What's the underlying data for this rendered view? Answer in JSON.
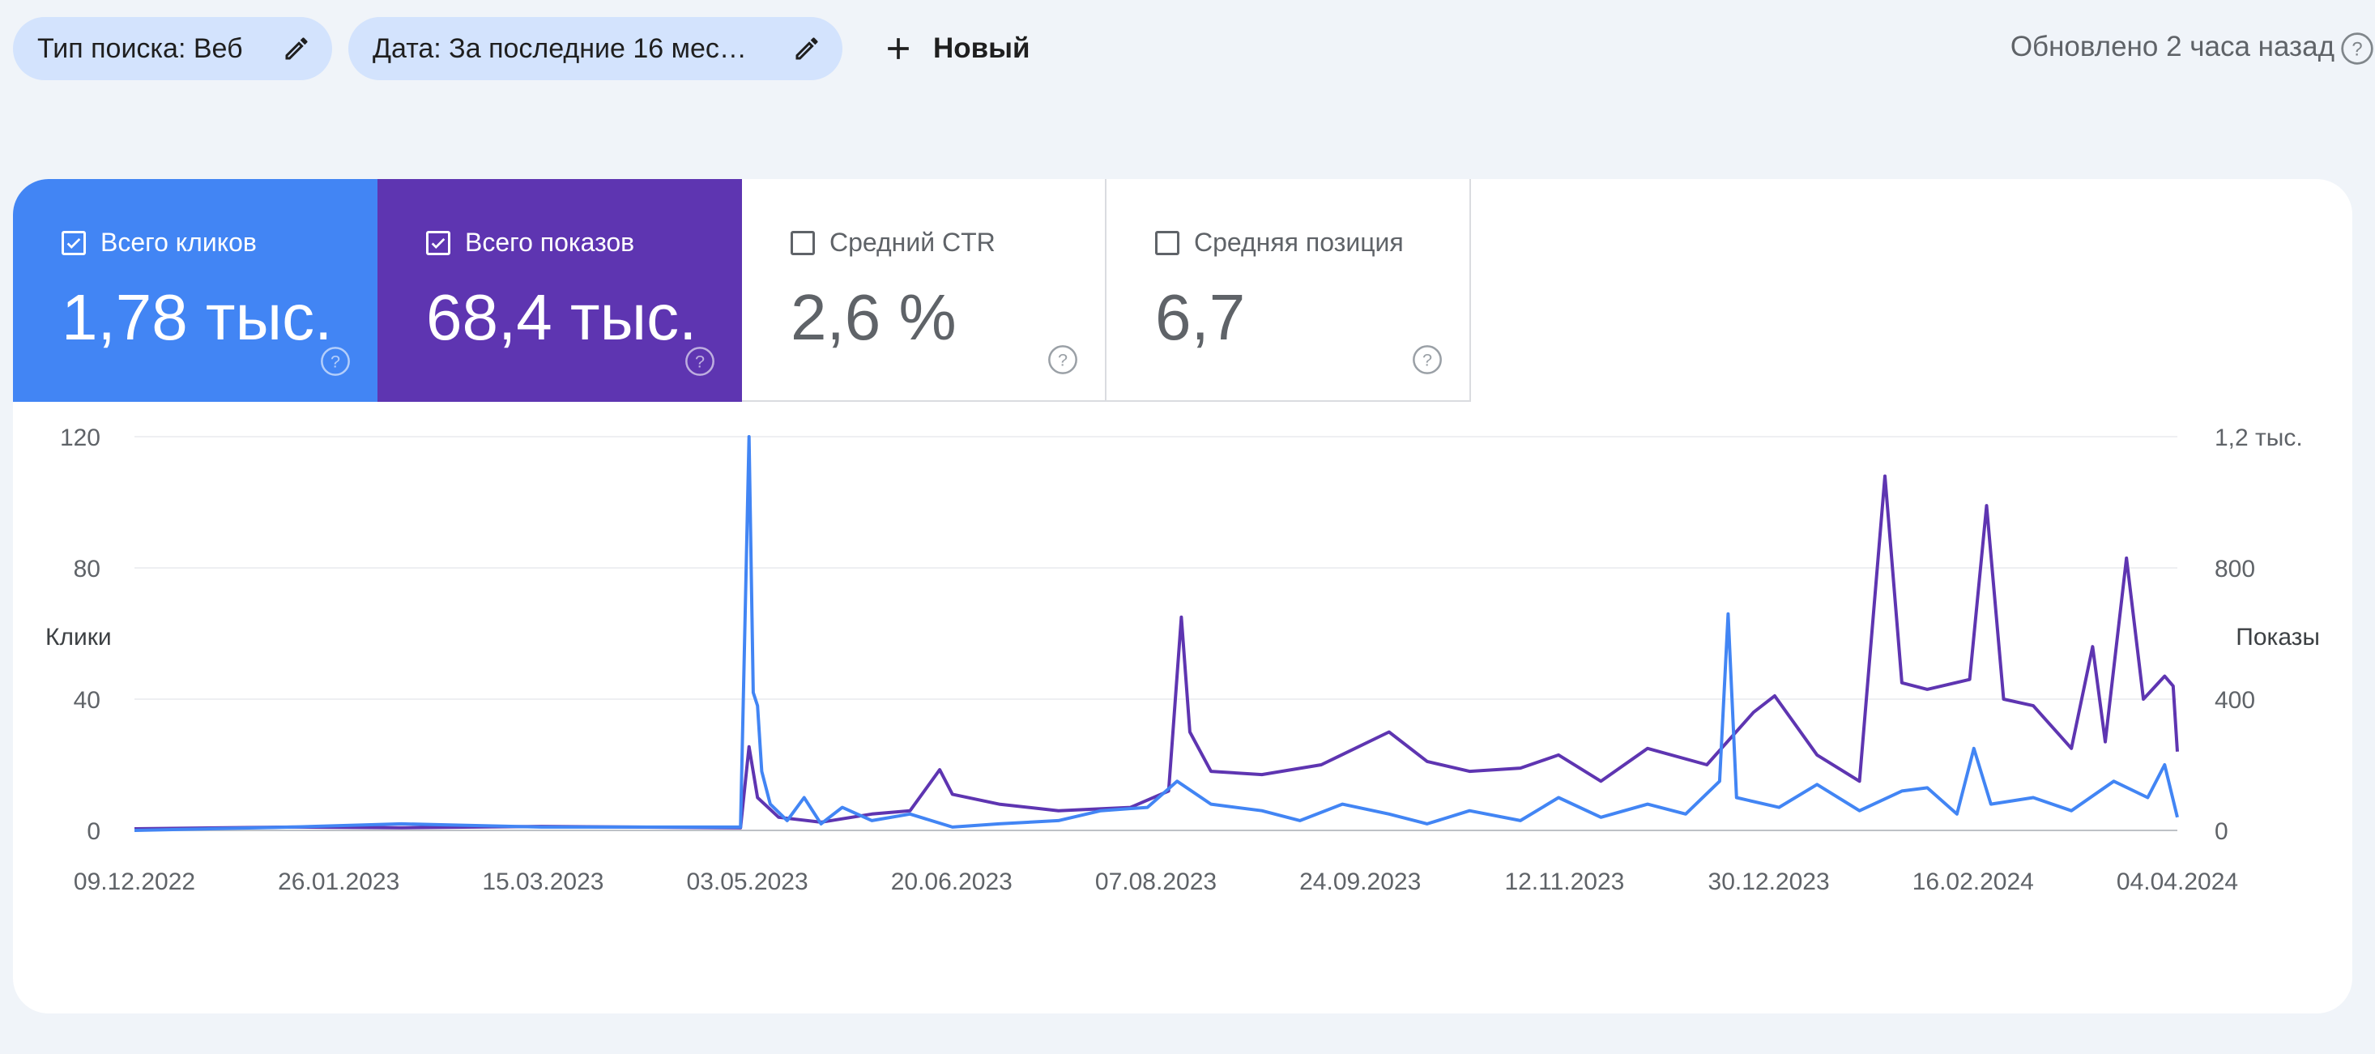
{
  "filters": {
    "search_type_label": "Тип поиска: Веб",
    "date_label": "Дата: За последние 16 мес…",
    "new_label": "Новый"
  },
  "status": {
    "updated_text": "Обновлено 2 часа назад"
  },
  "metrics": [
    {
      "label": "Всего кликов",
      "value": "1,78 тыс.",
      "checked": true,
      "color": "#4285f4"
    },
    {
      "label": "Всего показов",
      "value": "68,4 тыс.",
      "checked": true,
      "color": "#5e35b1"
    },
    {
      "label": "Средний CTR",
      "value": "2,6 %",
      "checked": false
    },
    {
      "label": "Средняя позиция",
      "value": "6,7",
      "checked": false
    }
  ],
  "icons": [
    "edit-icon",
    "plus-icon",
    "help-icon",
    "checkbox-icon"
  ],
  "chart_data": {
    "type": "line",
    "left_axis_label": "Клики",
    "right_axis_label": "Показы",
    "left_ticks": [
      "0",
      "40",
      "80",
      "120"
    ],
    "right_ticks": [
      "0",
      "400",
      "800",
      "1,2 тыс."
    ],
    "ylim_left": [
      0,
      120
    ],
    "ylim_right": [
      0,
      1200
    ],
    "x_labels": [
      "09.12.2022",
      "26.01.2023",
      "15.03.2023",
      "03.05.2023",
      "20.06.2023",
      "07.08.2023",
      "24.09.2023",
      "12.11.2023",
      "30.12.2023",
      "16.02.2024",
      "04.04.2024"
    ],
    "x_range": [
      "2022-12-09",
      "2024-04-04"
    ],
    "grid": "horizontal",
    "series": [
      {
        "name": "Клики",
        "axis": "left",
        "color": "#4285f4",
        "points": [
          [
            "2022-12-09",
            0
          ],
          [
            "2023-01-15",
            1
          ],
          [
            "2023-02-10",
            2
          ],
          [
            "2023-03-15",
            1
          ],
          [
            "2023-05-01",
            1
          ],
          [
            "2023-05-03",
            120
          ],
          [
            "2023-05-04",
            42
          ],
          [
            "2023-05-05",
            38
          ],
          [
            "2023-05-06",
            18
          ],
          [
            "2023-05-08",
            8
          ],
          [
            "2023-05-12",
            3
          ],
          [
            "2023-05-16",
            10
          ],
          [
            "2023-05-20",
            2
          ],
          [
            "2023-05-25",
            7
          ],
          [
            "2023-06-01",
            3
          ],
          [
            "2023-06-10",
            5
          ],
          [
            "2023-06-20",
            1
          ],
          [
            "2023-07-01",
            2
          ],
          [
            "2023-07-15",
            3
          ],
          [
            "2023-07-25",
            6
          ],
          [
            "2023-08-05",
            7
          ],
          [
            "2023-08-12",
            15
          ],
          [
            "2023-08-20",
            8
          ],
          [
            "2023-09-01",
            6
          ],
          [
            "2023-09-10",
            3
          ],
          [
            "2023-09-20",
            8
          ],
          [
            "2023-10-01",
            5
          ],
          [
            "2023-10-10",
            2
          ],
          [
            "2023-10-20",
            6
          ],
          [
            "2023-11-01",
            3
          ],
          [
            "2023-11-10",
            10
          ],
          [
            "2023-11-20",
            4
          ],
          [
            "2023-12-01",
            8
          ],
          [
            "2023-12-10",
            5
          ],
          [
            "2023-12-18",
            15
          ],
          [
            "2023-12-20",
            66
          ],
          [
            "2023-12-22",
            10
          ],
          [
            "2024-01-01",
            7
          ],
          [
            "2024-01-10",
            14
          ],
          [
            "2024-01-20",
            6
          ],
          [
            "2024-01-30",
            12
          ],
          [
            "2024-02-05",
            13
          ],
          [
            "2024-02-12",
            5
          ],
          [
            "2024-02-16",
            25
          ],
          [
            "2024-02-20",
            8
          ],
          [
            "2024-03-01",
            10
          ],
          [
            "2024-03-10",
            6
          ],
          [
            "2024-03-20",
            15
          ],
          [
            "2024-03-28",
            10
          ],
          [
            "2024-04-01",
            20
          ],
          [
            "2024-04-04",
            4
          ]
        ]
      },
      {
        "name": "Показы",
        "axis": "right",
        "color": "#5e35b1",
        "points": [
          [
            "2022-12-09",
            5
          ],
          [
            "2023-01-15",
            10
          ],
          [
            "2023-02-10",
            8
          ],
          [
            "2023-03-15",
            12
          ],
          [
            "2023-05-01",
            8
          ],
          [
            "2023-05-03",
            255
          ],
          [
            "2023-05-05",
            100
          ],
          [
            "2023-05-10",
            40
          ],
          [
            "2023-05-20",
            25
          ],
          [
            "2023-06-01",
            50
          ],
          [
            "2023-06-10",
            60
          ],
          [
            "2023-06-17",
            185
          ],
          [
            "2023-06-20",
            110
          ],
          [
            "2023-07-01",
            80
          ],
          [
            "2023-07-15",
            60
          ],
          [
            "2023-08-01",
            70
          ],
          [
            "2023-08-10",
            120
          ],
          [
            "2023-08-13",
            650
          ],
          [
            "2023-08-15",
            300
          ],
          [
            "2023-08-20",
            180
          ],
          [
            "2023-09-01",
            170
          ],
          [
            "2023-09-15",
            200
          ],
          [
            "2023-10-01",
            300
          ],
          [
            "2023-10-10",
            210
          ],
          [
            "2023-10-20",
            180
          ],
          [
            "2023-11-01",
            190
          ],
          [
            "2023-11-10",
            230
          ],
          [
            "2023-11-20",
            150
          ],
          [
            "2023-12-01",
            250
          ],
          [
            "2023-12-15",
            200
          ],
          [
            "2023-12-26",
            360
          ],
          [
            "2023-12-31",
            410
          ],
          [
            "2024-01-10",
            230
          ],
          [
            "2024-01-20",
            150
          ],
          [
            "2024-01-26",
            1080
          ],
          [
            "2024-01-30",
            450
          ],
          [
            "2024-02-05",
            430
          ],
          [
            "2024-02-15",
            460
          ],
          [
            "2024-02-19",
            990
          ],
          [
            "2024-02-23",
            400
          ],
          [
            "2024-03-01",
            380
          ],
          [
            "2024-03-10",
            250
          ],
          [
            "2024-03-15",
            560
          ],
          [
            "2024-03-18",
            270
          ],
          [
            "2024-03-23",
            830
          ],
          [
            "2024-03-27",
            400
          ],
          [
            "2024-04-01",
            470
          ],
          [
            "2024-04-03",
            440
          ],
          [
            "2024-04-04",
            240
          ]
        ]
      }
    ]
  }
}
